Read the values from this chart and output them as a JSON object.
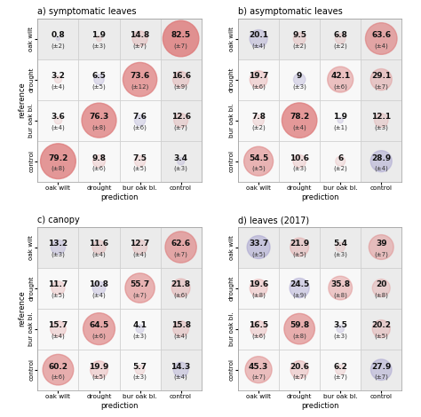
{
  "panels": [
    {
      "title": "a) symptomatic leaves",
      "values": [
        [
          0.8,
          1.9,
          14.8,
          82.5
        ],
        [
          3.2,
          6.5,
          73.6,
          16.6
        ],
        [
          3.6,
          76.3,
          7.6,
          12.6
        ],
        [
          79.2,
          9.8,
          7.5,
          3.4
        ]
      ],
      "errors": [
        [
          2,
          3,
          7,
          7
        ],
        [
          4,
          5,
          12,
          9
        ],
        [
          4,
          8,
          6,
          7
        ],
        [
          8,
          6,
          5,
          3
        ]
      ]
    },
    {
      "title": "b) asymptomatic leaves",
      "values": [
        [
          20.1,
          9.5,
          6.8,
          63.6
        ],
        [
          19.7,
          9,
          42.1,
          29.1
        ],
        [
          7.8,
          78.2,
          1.9,
          12.1
        ],
        [
          54.5,
          10.6,
          6,
          28.9
        ]
      ],
      "errors": [
        [
          4,
          2,
          2,
          4
        ],
        [
          6,
          3,
          6,
          7
        ],
        [
          2,
          4,
          1,
          3
        ],
        [
          5,
          3,
          2,
          4
        ]
      ]
    },
    {
      "title": "c) canopy",
      "values": [
        [
          13.2,
          11.6,
          12.7,
          62.6
        ],
        [
          11.7,
          10.8,
          55.7,
          21.8
        ],
        [
          15.7,
          64.5,
          4.1,
          15.8
        ],
        [
          60.2,
          19.9,
          5.7,
          14.3
        ]
      ],
      "errors": [
        [
          3,
          4,
          4,
          7
        ],
        [
          5,
          4,
          7,
          6
        ],
        [
          4,
          6,
          3,
          4
        ],
        [
          6,
          5,
          3,
          4
        ]
      ]
    },
    {
      "title": "d) leaves (2017)",
      "values": [
        [
          33.7,
          21.9,
          5.4,
          39
        ],
        [
          19.6,
          24.5,
          35.8,
          20
        ],
        [
          16.5,
          59.8,
          3.5,
          20.2
        ],
        [
          45.3,
          20.6,
          6.2,
          27.9
        ]
      ],
      "errors": [
        [
          5,
          5,
          3,
          7
        ],
        [
          8,
          9,
          8,
          8
        ],
        [
          6,
          8,
          3,
          5
        ],
        [
          7,
          7,
          7,
          7
        ]
      ]
    }
  ],
  "categories": [
    "oak wilt",
    "drought",
    "bur oak bl.",
    "control"
  ],
  "xlabel": "prediction",
  "ylabel": "reference",
  "max_val": 82.5
}
